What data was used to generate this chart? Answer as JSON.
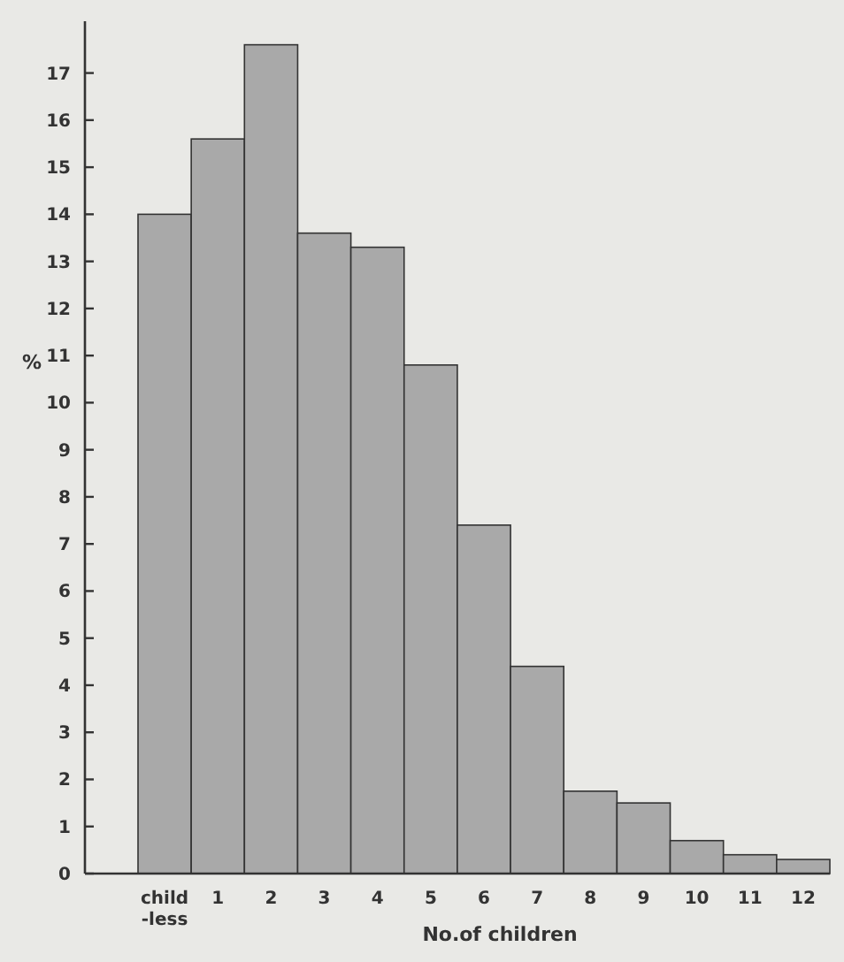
{
  "chart_data": {
    "type": "bar",
    "xlabel": "No.of children",
    "ylabel": "%",
    "categories": [
      "child\n-less",
      "1",
      "2",
      "3",
      "4",
      "5",
      "6",
      "7",
      "8",
      "9",
      "10",
      "11",
      "12"
    ],
    "values": [
      14.0,
      15.6,
      17.6,
      13.6,
      13.3,
      10.8,
      7.4,
      4.4,
      1.75,
      1.5,
      0.7,
      0.4,
      0.3
    ],
    "color": "#a9a9a9",
    "ylim": [
      0,
      18.1
    ],
    "yticks": [
      0,
      1,
      2,
      3,
      4,
      5,
      6,
      7,
      8,
      9,
      10,
      11,
      12,
      13,
      14,
      15,
      16,
      17
    ],
    "grid": false
  }
}
